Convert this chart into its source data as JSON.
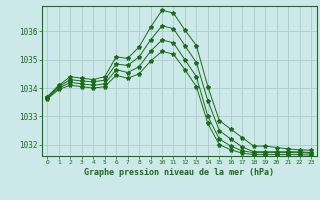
{
  "background_color": "#cce8e8",
  "grid_color": "#aacccc",
  "line_color": "#1a6b1a",
  "xlabel": "Graphe pression niveau de la mer (hPa)",
  "xlim": [
    -0.5,
    23.5
  ],
  "ylim": [
    1031.6,
    1036.9
  ],
  "yticks": [
    1032,
    1033,
    1034,
    1035,
    1036
  ],
  "xticks": [
    0,
    1,
    2,
    3,
    4,
    5,
    6,
    7,
    8,
    9,
    10,
    11,
    12,
    13,
    14,
    15,
    16,
    17,
    18,
    19,
    20,
    21,
    22,
    23
  ],
  "series": [
    {
      "x": [
        0,
        1,
        2,
        3,
        4,
        5,
        6,
        7,
        8,
        9,
        10,
        11,
        12,
        13,
        14,
        15,
        16,
        17,
        18,
        19,
        20,
        21,
        22,
        23
      ],
      "y": [
        1033.7,
        1034.1,
        1034.4,
        1034.35,
        1034.3,
        1034.4,
        1035.1,
        1035.05,
        1035.45,
        1036.15,
        1036.75,
        1036.65,
        1036.05,
        1035.5,
        1034.05,
        1032.85,
        1032.55,
        1032.25,
        1031.95,
        1031.95,
        1031.9,
        1031.85,
        1031.82,
        1031.8
      ]
    },
    {
      "x": [
        0,
        1,
        2,
        3,
        4,
        5,
        6,
        7,
        8,
        9,
        10,
        11,
        12,
        13,
        14,
        15,
        16,
        17,
        18,
        19,
        20,
        21,
        22,
        23
      ],
      "y": [
        1033.68,
        1034.05,
        1034.3,
        1034.25,
        1034.22,
        1034.28,
        1034.85,
        1034.8,
        1035.1,
        1035.7,
        1036.2,
        1036.1,
        1035.5,
        1034.9,
        1033.55,
        1032.5,
        1032.2,
        1031.92,
        1031.75,
        1031.75,
        1031.75,
        1031.75,
        1031.75,
        1031.72
      ]
    },
    {
      "x": [
        0,
        1,
        2,
        3,
        4,
        5,
        6,
        7,
        8,
        9,
        10,
        11,
        12,
        13,
        14,
        15,
        16,
        17,
        18,
        19,
        20,
        21,
        22,
        23
      ],
      "y": [
        1033.65,
        1034.0,
        1034.2,
        1034.15,
        1034.1,
        1034.15,
        1034.65,
        1034.55,
        1034.75,
        1035.3,
        1035.7,
        1035.6,
        1035.0,
        1034.4,
        1033.0,
        1032.2,
        1031.95,
        1031.78,
        1031.72,
        1031.72,
        1031.72,
        1031.72,
        1031.72,
        1031.7
      ]
    },
    {
      "x": [
        0,
        1,
        2,
        3,
        4,
        5,
        6,
        7,
        8,
        9,
        10,
        11,
        12,
        13,
        14,
        15,
        16,
        17,
        18,
        19,
        20,
        21,
        22,
        23
      ],
      "y": [
        1033.62,
        1033.95,
        1034.1,
        1034.05,
        1034.0,
        1034.05,
        1034.45,
        1034.35,
        1034.5,
        1034.95,
        1035.3,
        1035.2,
        1034.65,
        1034.05,
        1032.75,
        1032.0,
        1031.82,
        1031.7,
        1031.65,
        1031.65,
        1031.65,
        1031.65,
        1031.65,
        1031.63
      ]
    }
  ]
}
